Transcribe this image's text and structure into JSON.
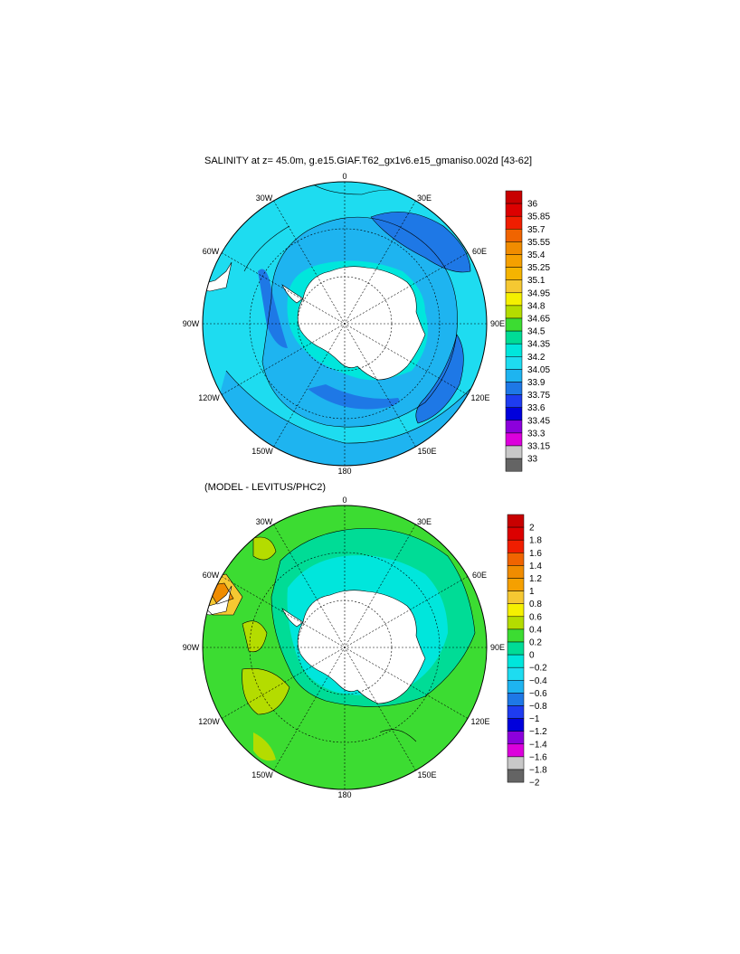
{
  "top_panel": {
    "title": "SALINITY at z=  45.0m, g.e15.GIAF.T62_gx1v6.e15_gmaniso.002d [43-62]",
    "lon_labels": [
      "0",
      "30E",
      "60E",
      "90E",
      "120E",
      "150E",
      "180",
      "150W",
      "120W",
      "90W",
      "60W",
      "30W"
    ],
    "colorbar": {
      "labels": [
        "36",
        "35.85",
        "35.7",
        "35.55",
        "35.4",
        "35.25",
        "35.1",
        "34.95",
        "34.8",
        "34.65",
        "34.5",
        "34.35",
        "34.2",
        "34.05",
        "33.9",
        "33.75",
        "33.6",
        "33.45",
        "33.3",
        "33.15",
        "33"
      ],
      "colors": [
        "#c80000",
        "#dc0000",
        "#f01e00",
        "#f06400",
        "#f08c00",
        "#f5a000",
        "#f5b400",
        "#f5c832",
        "#f5f000",
        "#b4dc00",
        "#3cdc32",
        "#00dc96",
        "#00e6dc",
        "#1edcf0",
        "#1eb4f0",
        "#1e78e6",
        "#1e3cf0",
        "#0000dc",
        "#8c00dc",
        "#dc00dc",
        "#c8c8c8",
        "#646464"
      ]
    }
  },
  "bottom_panel": {
    "title": "(MODEL - LEVITUS/PHC2)",
    "lon_labels": [
      "0",
      "30E",
      "60E",
      "90E",
      "120E",
      "150E",
      "180",
      "150W",
      "120W",
      "90W",
      "60W",
      "30W"
    ],
    "colorbar": {
      "labels": [
        "2",
        "1.8",
        "1.6",
        "1.4",
        "1.2",
        "1",
        "0.8",
        "0.6",
        "0.4",
        "0.2",
        "0",
        "−0.2",
        "−0.4",
        "−0.6",
        "−0.8",
        "−1",
        "−1.2",
        "−1.4",
        "−1.6",
        "−1.8",
        "−2"
      ],
      "colors": [
        "#c80000",
        "#dc0000",
        "#f01e00",
        "#f06400",
        "#f08c00",
        "#f5a000",
        "#f5c832",
        "#f5f000",
        "#b4dc00",
        "#3cdc32",
        "#00dc96",
        "#00e6dc",
        "#1edcf0",
        "#1eb4f0",
        "#1e78e6",
        "#1e3cf0",
        "#0000dc",
        "#8c00dc",
        "#dc00dc",
        "#c8c8c8",
        "#646464"
      ]
    }
  }
}
